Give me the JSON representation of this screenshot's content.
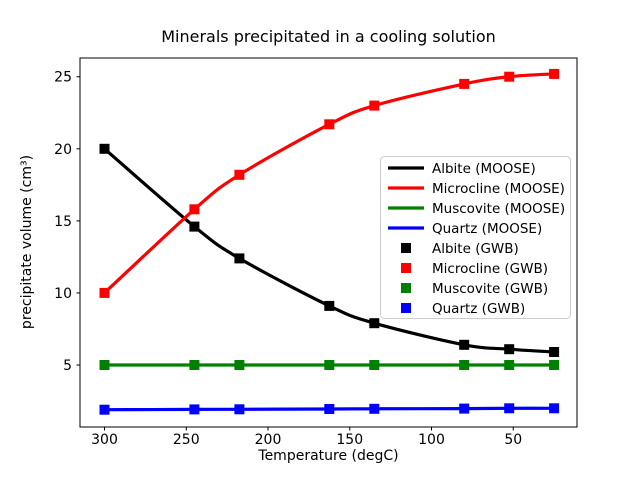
{
  "figure": {
    "background": "#ffffff",
    "text_color": "#000000",
    "spine_color": "#000000",
    "legend_border_color": "#cccccc",
    "legend_background": "#ffffff"
  },
  "chart_data": {
    "type": "line",
    "title": "Minerals precipitated in a cooling solution",
    "xlabel": "Temperature (degC)",
    "ylabel": "precipitate volume (cm³)",
    "grid": false,
    "legend_position": "center right",
    "x_axis": {
      "ticks": [
        300,
        250,
        200,
        150,
        100,
        50
      ],
      "reversed": true,
      "xlim": [
        315,
        11
      ]
    },
    "y_axis": {
      "ticks": [
        5,
        10,
        15,
        20,
        25
      ],
      "ylim": [
        0.7,
        26.3
      ]
    },
    "x": [
      300,
      245,
      217.5,
      162.5,
      135,
      80,
      52.5,
      25
    ],
    "series": [
      {
        "name": "Albite (MOOSE)",
        "type": "line",
        "color": "#000000",
        "values": [
          20.0,
          14.6,
          12.4,
          9.1,
          7.9,
          6.4,
          6.1,
          5.9
        ]
      },
      {
        "name": "Microcline (MOOSE)",
        "type": "line",
        "color": "#ff0000",
        "values": [
          10.0,
          15.8,
          18.2,
          21.7,
          23.0,
          24.5,
          25.0,
          25.2
        ]
      },
      {
        "name": "Muscovite (MOOSE)",
        "type": "line",
        "color": "#008000",
        "values": [
          5.0,
          5.0,
          5.0,
          5.0,
          5.0,
          5.0,
          5.0,
          5.0
        ]
      },
      {
        "name": "Quartz (MOOSE)",
        "type": "line",
        "color": "#0000ff",
        "values": [
          1.9,
          1.92,
          1.93,
          1.95,
          1.96,
          1.98,
          2.0,
          2.0
        ]
      },
      {
        "name": "Albite (GWB)",
        "type": "scatter",
        "color": "#000000",
        "marker": "square",
        "values": [
          20.0,
          14.6,
          12.4,
          9.1,
          7.9,
          6.4,
          6.1,
          5.9
        ]
      },
      {
        "name": "Microcline (GWB)",
        "type": "scatter",
        "color": "#ff0000",
        "marker": "square",
        "values": [
          10.0,
          15.8,
          18.2,
          21.7,
          23.0,
          24.5,
          25.0,
          25.2
        ]
      },
      {
        "name": "Muscovite (GWB)",
        "type": "scatter",
        "color": "#008000",
        "marker": "square",
        "values": [
          5.0,
          5.0,
          5.0,
          5.0,
          5.0,
          5.0,
          5.0,
          5.0
        ]
      },
      {
        "name": "Quartz (GWB)",
        "type": "scatter",
        "color": "#0000ff",
        "marker": "square",
        "values": [
          1.9,
          1.92,
          1.93,
          1.95,
          1.96,
          1.98,
          2.0,
          2.0
        ]
      }
    ]
  }
}
